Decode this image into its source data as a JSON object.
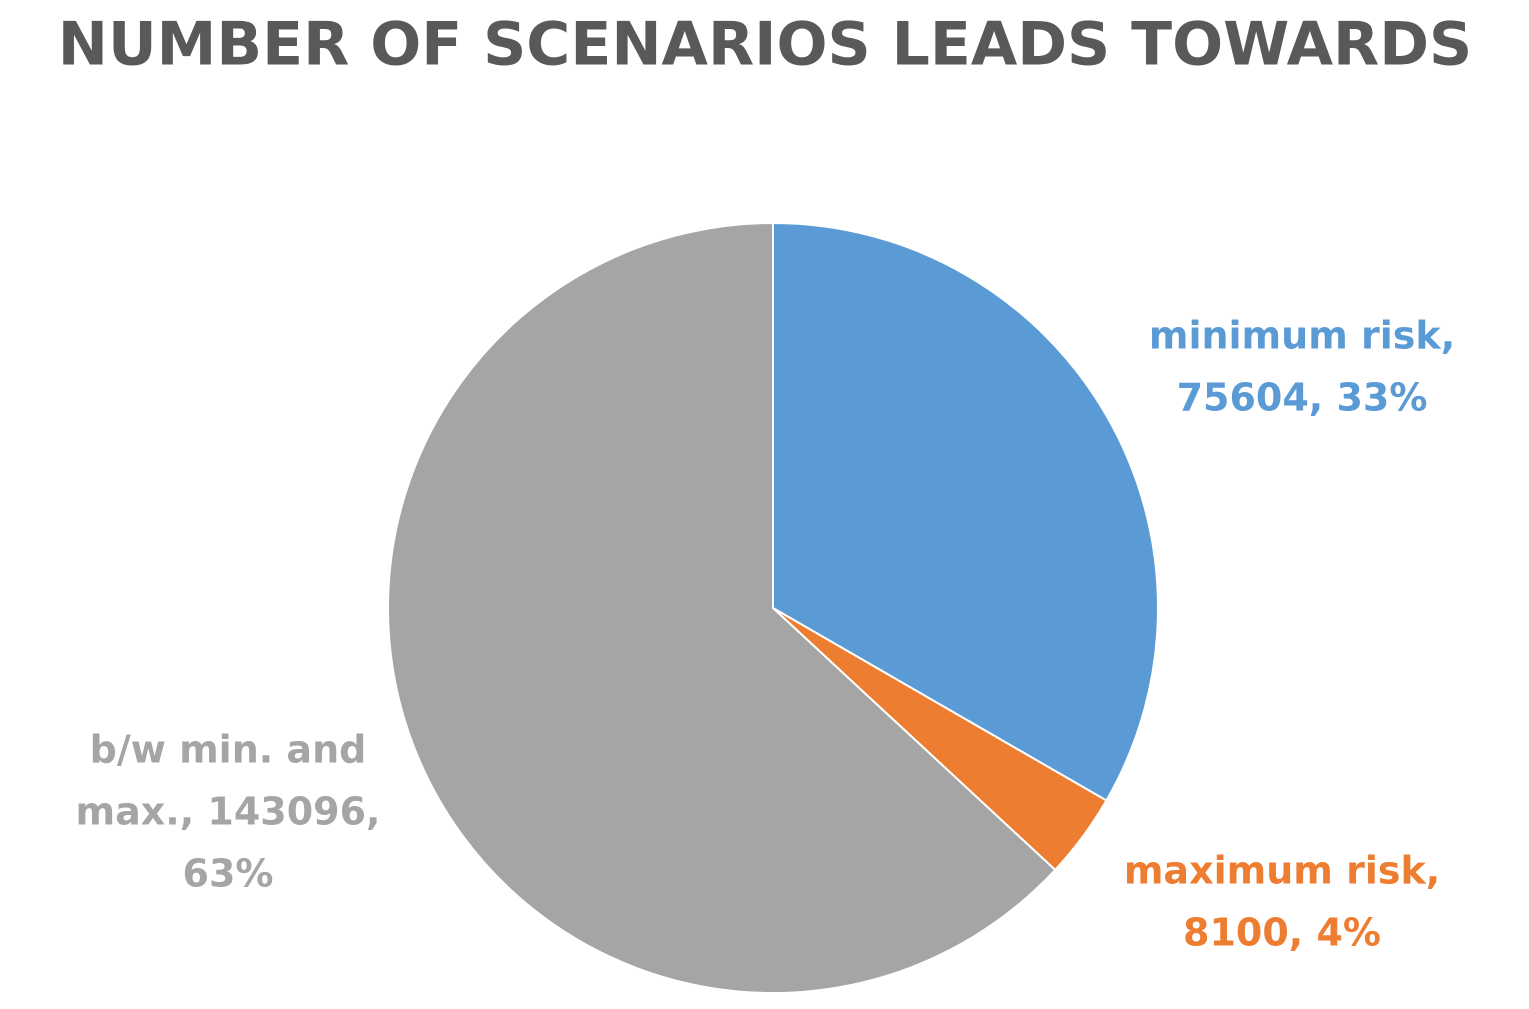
{
  "chart_data": {
    "type": "pie",
    "title": "NUMBER OF SCENARIOS LEADS TOWARDS",
    "values": [
      75604,
      8100,
      143096
    ],
    "value_labels": [
      [
        "minimum risk,",
        "75604, 33%"
      ],
      [
        "maximum risk,",
        "8100, 4%"
      ],
      [
        "b/w min. and",
        "max., 143096,",
        "63%"
      ]
    ],
    "colors": [
      "#5b9bd5",
      "#ed7d31",
      "#a5a5a5"
    ]
  }
}
